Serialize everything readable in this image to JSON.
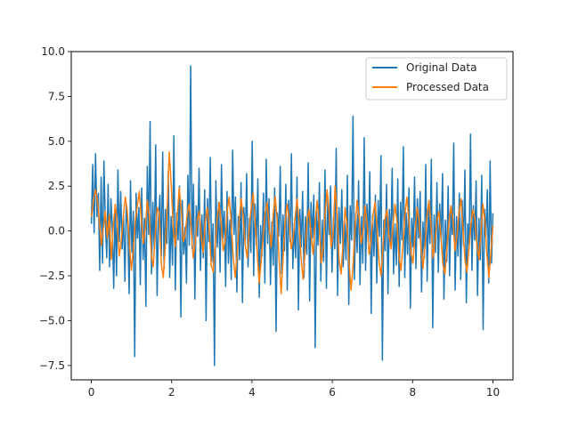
{
  "chart_data": {
    "type": "line",
    "title": "",
    "xlabel": "",
    "ylabel": "",
    "xlim": [
      -0.5,
      10.5
    ],
    "ylim": [
      -8.3,
      10.0
    ],
    "xticks": [
      0,
      2,
      4,
      6,
      8,
      10
    ],
    "xtick_labels": [
      "0",
      "2",
      "4",
      "6",
      "8",
      "10"
    ],
    "yticks": [
      -7.5,
      -5.0,
      -2.5,
      0.0,
      2.5,
      5.0,
      7.5,
      10.0
    ],
    "ytick_labels": [
      "−7.5",
      "−5.0",
      "−2.5",
      "0.0",
      "2.5",
      "5.0",
      "7.5",
      "10.0"
    ],
    "grid": false,
    "legend_position": "top-right",
    "series": [
      {
        "name": "Original Data",
        "color": "#1f77b4",
        "x_start": 0,
        "x_end": 10,
        "values": [
          0.4,
          3.7,
          -0.1,
          4.3,
          0.8,
          2.1,
          -2.2,
          3.0,
          -1.8,
          3.9,
          0.5,
          -1.5,
          2.6,
          -2.0,
          1.8,
          0.2,
          -3.2,
          1.4,
          -2.5,
          3.4,
          -0.6,
          2.2,
          -1.0,
          0.9,
          -2.8,
          1.5,
          0.3,
          -3.5,
          2.8,
          -1.2,
          1.1,
          -7.0,
          2.1,
          -0.4,
          1.3,
          -3.0,
          2.4,
          -1.6,
          0.7,
          -4.2,
          3.6,
          -0.2,
          6.1,
          -2.4,
          1.6,
          -1.1,
          4.8,
          -3.6,
          0.6,
          2.0,
          -1.4,
          4.4,
          -2.1,
          1.2,
          -0.7,
          3.3,
          -2.6,
          0.8,
          -1.9,
          5.3,
          -3.3,
          1.0,
          -0.5,
          2.5,
          -4.8,
          1.7,
          -1.3,
          0.2,
          -2.9,
          3.1,
          -0.8,
          9.2,
          -1.0,
          2.6,
          -3.8,
          1.4,
          -0.3,
          3.5,
          -2.2,
          0.9,
          -1.5,
          2.3,
          -5.0,
          1.8,
          -0.6,
          4.1,
          -1.7,
          0.4,
          -7.5,
          2.8,
          -0.9,
          1.6,
          -2.3,
          3.7,
          -0.4,
          1.1,
          -3.1,
          2.2,
          -1.8,
          0.6,
          -2.7,
          4.5,
          -0.2,
          1.9,
          -3.4,
          0.8,
          -1.6,
          2.7,
          -4.0,
          1.3,
          -0.5,
          3.2,
          -2.0,
          0.7,
          -1.2,
          5.0,
          -2.5,
          1.5,
          -0.8,
          2.9,
          -3.7,
          0.3,
          -1.4,
          2.1,
          -2.9,
          4.0,
          -0.7,
          1.8,
          -3.0,
          0.5,
          -1.9,
          2.4,
          -5.6,
          1.0,
          -0.3,
          3.6,
          -2.4,
          0.9,
          -1.1,
          2.6,
          -3.3,
          1.7,
          -0.6,
          4.3,
          -2.1,
          0.4,
          -1.5,
          3.0,
          -4.4,
          1.2,
          -0.9,
          2.2,
          -2.6,
          0.8,
          -1.3,
          3.8,
          -3.9,
          1.6,
          -0.4,
          2.0,
          -6.5,
          1.1,
          -0.8,
          2.7,
          -2.8,
          0.6,
          -1.7,
          3.4,
          -3.2,
          1.9,
          -0.2,
          2.5,
          -2.3,
          0.7,
          -1.0,
          4.6,
          -3.6,
          1.3,
          -0.7,
          2.3,
          -2.0,
          0.5,
          -1.6,
          3.1,
          -4.1,
          1.4,
          -0.5,
          6.4,
          -2.7,
          1.0,
          -1.2,
          2.8,
          -3.0,
          0.8,
          -1.8,
          5.2,
          -2.2,
          1.5,
          -0.6,
          3.3,
          -4.6,
          0.9,
          -1.4,
          2.0,
          -2.9,
          1.7,
          -0.3,
          4.2,
          -7.2,
          0.6,
          -1.1,
          2.6,
          -3.5,
          1.2,
          -0.8,
          3.5,
          -2.4,
          0.4,
          -1.9,
          2.9,
          -3.1,
          1.6,
          -0.5,
          4.7,
          -2.6,
          1.0,
          -1.3,
          2.4,
          -4.3,
          0.7,
          -0.9,
          3.0,
          -2.1,
          1.8,
          -0.4,
          2.2,
          -3.4,
          0.5,
          -1.5,
          3.7,
          -2.8,
          1.3,
          -0.7,
          4.0,
          -5.4,
          0.9,
          -1.2,
          2.7,
          -2.3,
          1.5,
          -0.6,
          3.2,
          -3.8,
          0.6,
          -1.7,
          2.5,
          -2.5,
          1.1,
          -0.2,
          4.9,
          -3.3,
          0.8,
          -1.4,
          2.1,
          -2.7,
          1.7,
          -0.8,
          3.4,
          -4.0,
          0.4,
          -1.0,
          5.4,
          -2.2,
          1.4,
          -0.5,
          2.8,
          -3.6,
          0.7,
          -1.6,
          3.1,
          -5.5,
          1.2,
          -0.3,
          2.3,
          -2.9,
          3.9,
          -1.8,
          1.0
        ]
      },
      {
        "name": "Processed Data",
        "color": "#ff7f0e",
        "x_start": 0,
        "x_end": 10,
        "values": [
          0.8,
          1.6,
          2.3,
          1.8,
          0.6,
          -0.8,
          0.2,
          1.1,
          -0.4,
          0.9,
          -1.6,
          0.3,
          1.5,
          0.4,
          -1.4,
          -0.5,
          0.8,
          1.9,
          1.1,
          -0.6,
          -2.2,
          -1.0,
          0.6,
          1.4,
          2.2,
          0.7,
          -0.7,
          0.1,
          1.7,
          0.9,
          -1.3,
          -2.0,
          -0.2,
          1.3,
          1.0,
          -1.8,
          -2.6,
          -0.9,
          1.4,
          4.4,
          2.5,
          0.2,
          -0.9,
          0.8,
          2.4,
          1.2,
          -0.6,
          -0.2,
          1.0,
          1.5,
          0.1,
          -1.5,
          -0.7,
          0.6,
          1.1,
          -0.3,
          -1.2,
          0.5,
          1.3,
          0.2,
          -1.9,
          -2.3,
          -0.8,
          0.7,
          1.6,
          0.4,
          -1.1,
          -0.5,
          1.1,
          1.9,
          0.5,
          -1.4,
          -2.6,
          -1.3,
          0.6,
          1.8,
          0.8,
          -0.8,
          -1.5,
          0.1,
          1.3,
          2.1,
          0.5,
          -1.2,
          -2.9,
          -1.7,
          -0.3,
          1.0,
          1.6,
          0.3,
          -0.9,
          0.9,
          1.9,
          0.6,
          -1.6,
          -3.5,
          -1.4,
          0.5,
          1.5,
          0.7,
          -1.0,
          -0.4,
          0.8,
          1.8,
          0.4,
          -1.5,
          -2.7,
          -1.1,
          0.6,
          1.2,
          -0.2,
          -1.3,
          0.4,
          1.7,
          0.6,
          -1.8,
          -1.0,
          0.9,
          2.3,
          1.1,
          -0.9,
          -0.2,
          2.5,
          1.0,
          -1.6,
          -2.4,
          -0.6,
          1.3,
          0.3,
          -1.8,
          -3.3,
          -1.9,
          0.2,
          1.7,
          0.8,
          -0.7,
          -0.1,
          1.4,
          0.5,
          -1.3,
          -0.5,
          0.9,
          1.6,
          0.2,
          -1.7,
          -2.5,
          -0.8,
          0.7,
          1.2,
          -0.3,
          -1.0,
          0.4,
          1.5,
          0.5,
          -1.4,
          -2.2,
          -0.7,
          1.0,
          1.9,
          0.4,
          -1.2,
          -1.8,
          -0.2,
          1.3,
          0.7,
          -0.9,
          -2.1,
          -0.8,
          0.8,
          1.7,
          0.3,
          -1.5,
          -0.6,
          0.6,
          1.1,
          -0.4,
          -1.9,
          -2.4,
          -0.9,
          0.5,
          1.4,
          0.6,
          -1.1,
          -0.3,
          1.0,
          1.8,
          0.2,
          -1.6,
          -2.3,
          -1.0,
          0.4,
          1.2,
          0.7,
          -0.8,
          -1.6,
          -0.1,
          1.5,
          0.5,
          -1.3,
          -2.6,
          -1.2,
          0.3
        ]
      }
    ]
  }
}
